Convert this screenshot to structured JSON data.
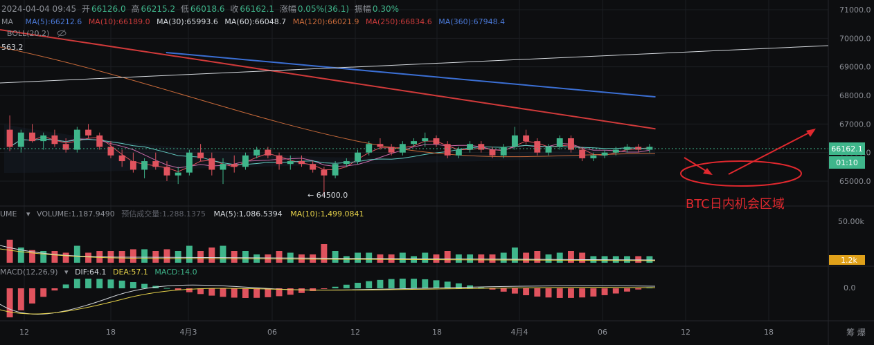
{
  "header": {
    "datetime": "2024-04-04 09:45",
    "open_label": "开",
    "open": "66126.0",
    "high_label": "高",
    "high": "66215.2",
    "low_label": "低",
    "low": "66018.6",
    "close_label": "收",
    "close": "66162.1",
    "change_label": "涨幅",
    "change": "0.05%(36.1)",
    "amp_label": "振幅",
    "amp": "0.30%"
  },
  "ma_legend": {
    "label": "MA",
    "items": [
      {
        "text": "MA(5):66212.6",
        "color": "#4a78d6"
      },
      {
        "text": "MA(10):66189.0",
        "color": "#c83a3a"
      },
      {
        "text": "MA(30):65993.6",
        "color": "#d6dadf"
      },
      {
        "text": "MA(60):66048.7",
        "color": "#d6dadf"
      },
      {
        "text": "MA(120):66021.9",
        "color": "#c86a3a"
      },
      {
        "text": "MA(250):66834.6",
        "color": "#c83a3a"
      },
      {
        "text": "MA(360):67948.4",
        "color": "#4a78d6"
      }
    ]
  },
  "boll_label": "BOLL(20,2)",
  "left_price_label": "563.2",
  "low_marker": "← 64500.0",
  "annotation_text": "BTC日内机会区域",
  "current_price": "66162.1",
  "countdown": "01:10",
  "volume_legend": {
    "title": "UME",
    "volume": "VOLUME:1,187.9490",
    "estimate": "预估成交量:1,288.1375",
    "ma5": "MA(5):1,086.5394",
    "ma10": "MA(10):1,499.0841"
  },
  "volume_axis": {
    "top_label": "50.00k",
    "current_label": "1.2k"
  },
  "macd_legend": {
    "title": "MACD(12,26,9)",
    "dif": "DIF:64.1",
    "dea": "DEA:57.1",
    "macd": "MACD:14.0"
  },
  "macd_axis_label": "0.0",
  "x_ticks": [
    "12",
    "18",
    "4月3",
    "06",
    "12",
    "18",
    "4月4",
    "06",
    "12",
    "18"
  ],
  "bottom_right": "筹 爆",
  "colors": {
    "up": "#3fb68b",
    "down": "#e0535e",
    "bg": "#0d0e10",
    "annotation": "#e0282e",
    "price_tag": "#3fb68b"
  },
  "chart_data": {
    "type": "candlestick",
    "title": "",
    "y_ticks": [
      71000.0,
      70000.0,
      69000.0,
      68000.0,
      67000.0,
      66000.0,
      65000.0
    ],
    "ylim": [
      64300,
      71200
    ],
    "x_ticks": [
      "12",
      "18",
      "4月3",
      "06",
      "12",
      "18",
      "4月4",
      "06",
      "12",
      "18"
    ],
    "candles": [
      [
        66800,
        67300,
        66050,
        66200
      ],
      [
        66200,
        66800,
        66000,
        66700
      ],
      [
        66700,
        67000,
        66350,
        66400
      ],
      [
        66400,
        66700,
        66100,
        66600
      ],
      [
        66600,
        66800,
        66200,
        66300
      ],
      [
        66300,
        66500,
        66000,
        66100
      ],
      [
        66100,
        66900,
        66000,
        66800
      ],
      [
        66800,
        67000,
        66500,
        66600
      ],
      [
        66600,
        66700,
        66100,
        66200
      ],
      [
        66200,
        66400,
        65800,
        65900
      ],
      [
        65900,
        66100,
        65500,
        65700
      ],
      [
        65700,
        66000,
        65300,
        65400
      ],
      [
        65400,
        65800,
        65100,
        65700
      ],
      [
        65700,
        66000,
        65400,
        65500
      ],
      [
        65500,
        65700,
        65000,
        65200
      ],
      [
        65200,
        65500,
        64900,
        65300
      ],
      [
        65300,
        66100,
        65200,
        66000
      ],
      [
        66000,
        66300,
        65700,
        65800
      ],
      [
        65800,
        66000,
        65200,
        65400
      ],
      [
        65400,
        65800,
        64900,
        65600
      ],
      [
        65600,
        65900,
        65300,
        65500
      ],
      [
        65500,
        66000,
        65400,
        65900
      ],
      [
        65900,
        66200,
        65800,
        66100
      ],
      [
        66100,
        66200,
        65800,
        65900
      ],
      [
        65900,
        66000,
        65400,
        65600
      ],
      [
        65600,
        65900,
        65400,
        65700
      ],
      [
        65700,
        65900,
        65500,
        65600
      ],
      [
        65600,
        65700,
        65300,
        65400
      ],
      [
        65400,
        65500,
        64500,
        65200
      ],
      [
        65200,
        65700,
        65100,
        65600
      ],
      [
        65600,
        65800,
        65500,
        65700
      ],
      [
        65700,
        66100,
        65600,
        66000
      ],
      [
        66000,
        66400,
        65900,
        66300
      ],
      [
        66300,
        66500,
        66100,
        66200
      ],
      [
        66200,
        66300,
        65900,
        66000
      ],
      [
        66000,
        66400,
        65900,
        66300
      ],
      [
        66300,
        66500,
        66200,
        66400
      ],
      [
        66400,
        66700,
        66200,
        66500
      ],
      [
        66500,
        66600,
        66200,
        66300
      ],
      [
        66300,
        66400,
        65800,
        65900
      ],
      [
        65900,
        66200,
        65800,
        66100
      ],
      [
        66100,
        66400,
        66000,
        66300
      ],
      [
        66300,
        66400,
        66000,
        66100
      ],
      [
        66100,
        66200,
        65800,
        65900
      ],
      [
        65900,
        66300,
        65800,
        66200
      ],
      [
        66200,
        66900,
        66100,
        66600
      ],
      [
        66600,
        66800,
        66300,
        66400
      ],
      [
        66400,
        66500,
        65900,
        66000
      ],
      [
        66000,
        66300,
        65900,
        66200
      ],
      [
        66200,
        66600,
        66100,
        66500
      ],
      [
        66500,
        66600,
        66000,
        66100
      ],
      [
        66100,
        66200,
        65700,
        65800
      ],
      [
        65800,
        66000,
        65700,
        65900
      ],
      [
        65900,
        66100,
        65800,
        66000
      ],
      [
        66000,
        66200,
        65900,
        66100
      ],
      [
        66100,
        66300,
        66000,
        66200
      ],
      [
        66200,
        66300,
        66000,
        66100
      ],
      [
        66100,
        66300,
        66000,
        66200
      ]
    ],
    "series": [
      {
        "name": "MA(360)",
        "values_at": [
          [
            0.19,
            69500
          ],
          [
            0.75,
            67950
          ]
        ],
        "color": "#3b6fd4"
      },
      {
        "name": "MA(250)",
        "values_at": [
          [
            0.0,
            70300
          ],
          [
            0.75,
            66830
          ]
        ],
        "color": "#d03a3a"
      }
    ],
    "volume": {
      "ylim": [
        0,
        50000
      ],
      "y_ticks": [
        50000
      ]
    },
    "macd": {
      "y_ticks": [
        0.0
      ]
    }
  }
}
